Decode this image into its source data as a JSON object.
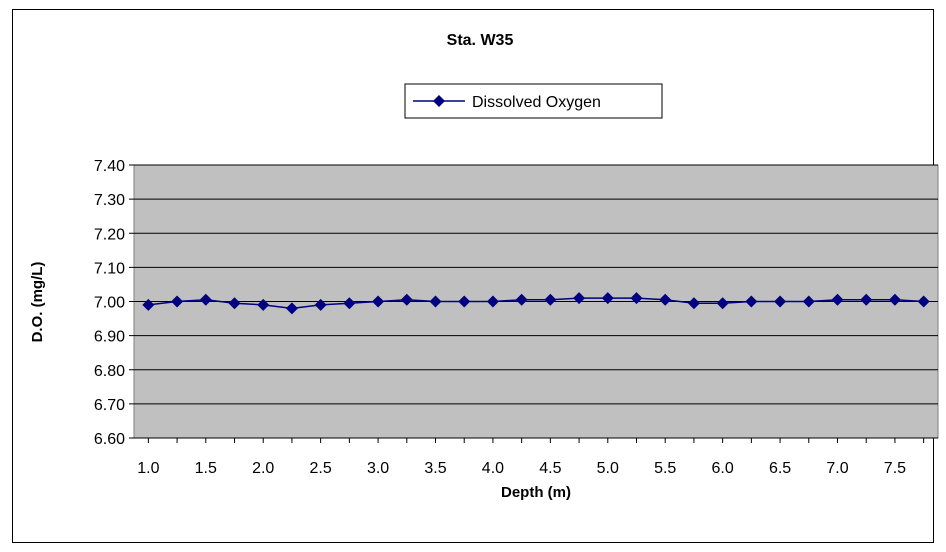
{
  "chart_data": {
    "type": "line",
    "title": "Sta. W35",
    "xlabel": "Depth (m)",
    "ylabel": "D.O. (mg/L)",
    "ylim": [
      6.6,
      7.4
    ],
    "yticks": [
      "6.60",
      "6.70",
      "6.80",
      "6.90",
      "7.00",
      "7.10",
      "7.20",
      "7.30",
      "7.40"
    ],
    "xticks": [
      "1.0",
      "1.5",
      "2.0",
      "2.5",
      "3.0",
      "3.5",
      "4.0",
      "4.5",
      "5.0",
      "5.5",
      "6.0",
      "6.5",
      "7.0",
      "7.5"
    ],
    "grid": true,
    "plot_background": "#c0c0c0",
    "legend_position": "top-center",
    "series": [
      {
        "name": "Dissolved Oxygen",
        "color": "#000080",
        "marker": "diamond",
        "x": [
          1.0,
          1.25,
          1.5,
          1.75,
          2.0,
          2.25,
          2.5,
          2.75,
          3.0,
          3.25,
          3.5,
          3.75,
          4.0,
          4.25,
          4.5,
          4.75,
          5.0,
          5.25,
          5.5,
          5.75,
          6.0,
          6.25,
          6.5,
          6.75,
          7.0,
          7.25,
          7.5,
          7.75
        ],
        "values": [
          6.99,
          7.0,
          7.005,
          6.995,
          6.99,
          6.98,
          6.99,
          6.995,
          7.0,
          7.005,
          7.0,
          7.0,
          7.0,
          7.005,
          7.005,
          7.01,
          7.01,
          7.01,
          7.005,
          6.995,
          6.995,
          7.0,
          7.0,
          7.0,
          7.005,
          7.005,
          7.005,
          7.0
        ]
      }
    ]
  }
}
